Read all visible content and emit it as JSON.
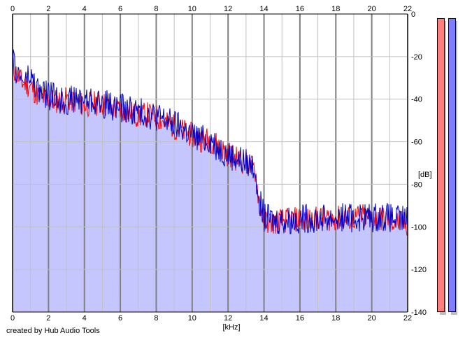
{
  "credit": "created by Hub Audio Tools",
  "colors": {
    "background": "#ffffff",
    "grid_minor": "#c0c0c0",
    "grid_major": "#808080",
    "fill": "#c6c6ff",
    "series_left": "#ff0000",
    "series_right": "#0000c8",
    "meter_left": "#ff7f7f",
    "meter_right": "#7f7fff"
  },
  "chart_data": {
    "type": "line",
    "title": "",
    "xlabel": "[kHz]",
    "ylabel": "[dB]",
    "xlim": [
      0,
      22
    ],
    "ylim": [
      -140,
      0
    ],
    "x_ticks": [
      "0",
      "2",
      "4",
      "6",
      "8",
      "10",
      "12",
      "14",
      "16",
      "18",
      "20",
      "22"
    ],
    "y_ticks": [
      "0",
      "-20",
      "-40",
      "-60",
      "-80",
      "-100",
      "-120",
      "-140"
    ],
    "grid": true,
    "x_kHz": [
      0,
      0.5,
      1,
      1.5,
      2,
      2.5,
      3,
      3.5,
      4,
      4.5,
      5,
      5.5,
      6,
      6.5,
      7,
      7.5,
      8,
      8.5,
      9,
      9.5,
      10,
      10.5,
      11,
      11.5,
      12,
      12.5,
      13,
      13.5,
      13.7,
      14,
      14.5,
      15,
      15.5,
      16,
      16.5,
      17,
      17.5,
      18,
      18.5,
      19,
      19.5,
      20,
      20.5,
      21,
      21.5,
      22
    ],
    "series": [
      {
        "values": [
          -25,
          -32,
          -34,
          -39,
          -40,
          -41,
          -40,
          -41,
          -43,
          -42,
          -42,
          -44,
          -45,
          -46,
          -48,
          -47,
          -48,
          -51,
          -53,
          -55,
          -57,
          -59,
          -59,
          -62,
          -66,
          -68,
          -70,
          -73,
          -86,
          -97,
          -98,
          -97,
          -97,
          -96,
          -97,
          -96,
          -96,
          -96,
          -96,
          -96,
          -95,
          -96,
          -96,
          -97,
          -98,
          -99
        ]
      },
      {
        "values": [
          -23,
          -31,
          -30,
          -37,
          -38,
          -40,
          -41,
          -40,
          -40,
          -41,
          -42,
          -43,
          -44,
          -45,
          -46,
          -47,
          -48,
          -50,
          -52,
          -54,
          -57,
          -59,
          -59,
          -63,
          -66,
          -68,
          -70,
          -72,
          -85,
          -96,
          -97,
          -97,
          -97,
          -96,
          -96,
          -96,
          -96,
          -96,
          -95,
          -96,
          -95,
          -96,
          -95,
          -96,
          -97,
          -97
        ]
      }
    ]
  }
}
